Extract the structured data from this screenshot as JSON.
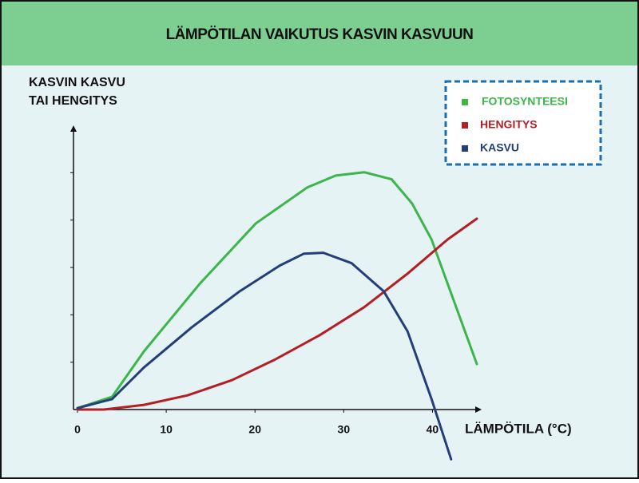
{
  "chart_data": {
    "type": "line",
    "title": "LÄMPÖTILAN VAIKUTUS KASVIN KASVUUN",
    "y_label": [
      "KASVIN KASVU",
      "TAI HENGITYS"
    ],
    "x_label": "LÄMPÖTILA (°C)",
    "xlim": [
      0,
      45
    ],
    "xticks": [
      0,
      10,
      20,
      30,
      40
    ],
    "ylim": [
      0,
      6
    ],
    "yticks": [
      1,
      2,
      3,
      4,
      5
    ],
    "legend": "top-right",
    "series": [
      {
        "name": "FOTOSYNTEESI",
        "color": "#3cb54a",
        "x": [
          0,
          3.9,
          7.5,
          13.8,
          20.1,
          25.9,
          29.1,
          32.3,
          35.4,
          37.7,
          39.9,
          45
        ],
        "values": [
          0.03,
          0.27,
          1.23,
          2.66,
          3.93,
          4.69,
          4.94,
          5.01,
          4.86,
          4.35,
          3.59,
          0.96
        ]
      },
      {
        "name": "HENGITYS",
        "color": "#b31f24",
        "x": [
          0,
          3,
          7.5,
          12.4,
          17.4,
          22.3,
          27.3,
          32.3,
          37.2,
          41.7,
          45
        ],
        "values": [
          0,
          0,
          0.1,
          0.3,
          0.62,
          1.06,
          1.57,
          2.16,
          2.87,
          3.59,
          4.03
        ]
      },
      {
        "name": "KASVU",
        "color": "#233f7a",
        "x": [
          0,
          3.9,
          7.5,
          12.9,
          18.3,
          22.8,
          25.5,
          27.7,
          30.9,
          34.5,
          37.2,
          39.9,
          42.1
        ],
        "values": [
          0.03,
          0.22,
          0.89,
          1.74,
          2.5,
          3.04,
          3.29,
          3.31,
          3.09,
          2.5,
          1.65,
          0.22,
          -1.05
        ]
      }
    ]
  }
}
